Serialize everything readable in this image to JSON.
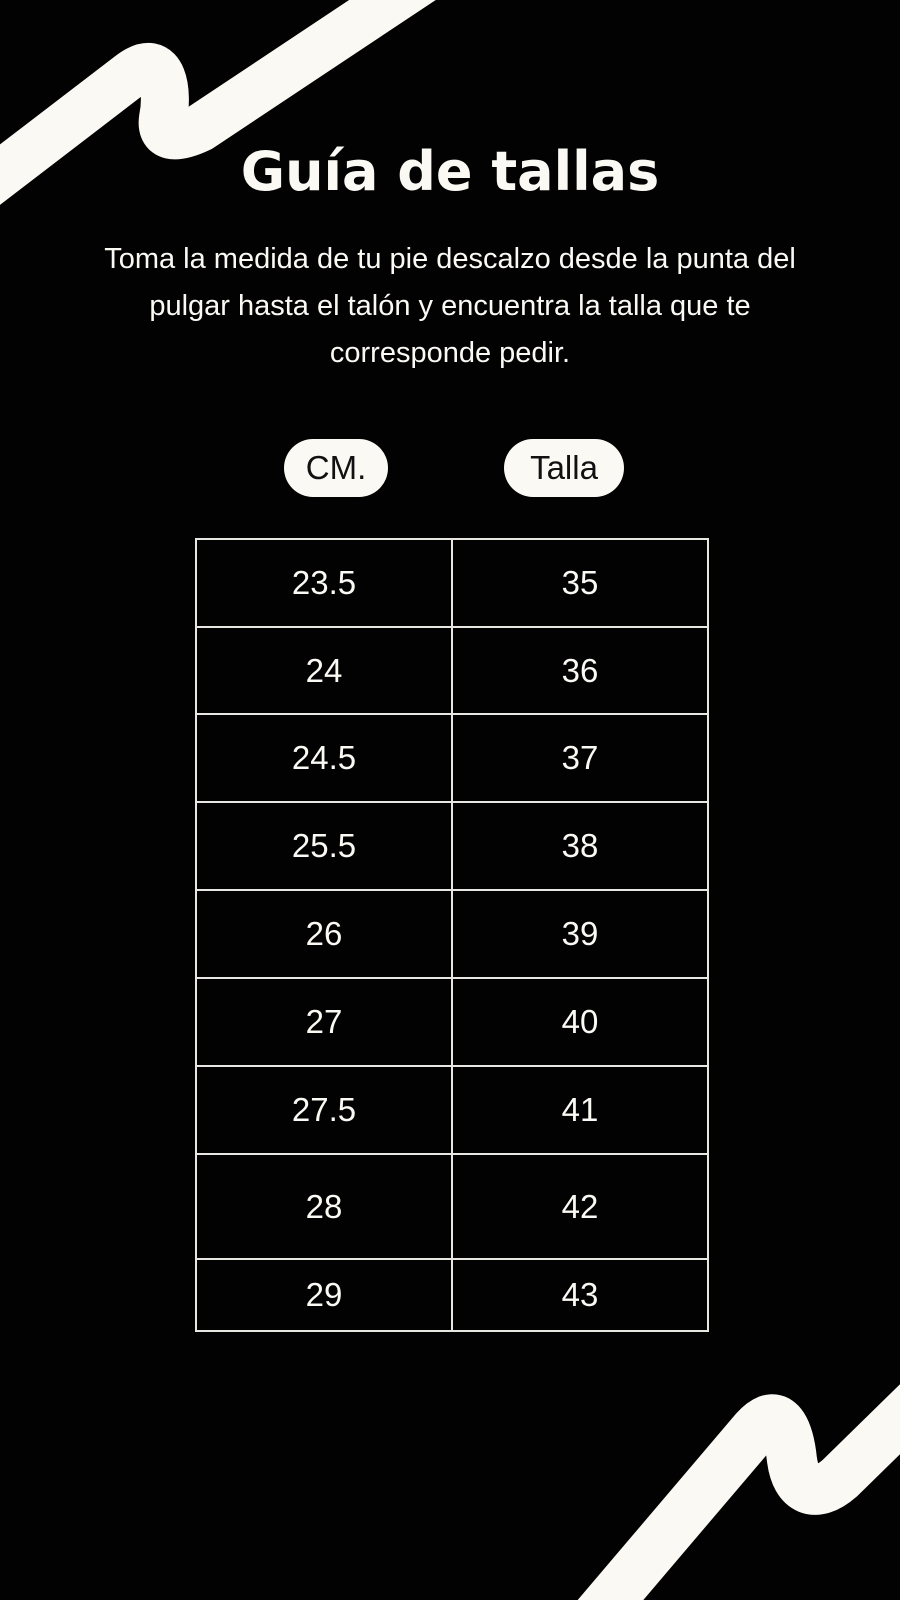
{
  "title": "Guía de tallas",
  "description": "Toma la medida de tu pie descalzo desde la punta del pulgar hasta el talón y encuentra la talla que te corresponde pedir.",
  "headers": {
    "cm": "CM.",
    "size": "Talla"
  },
  "rows": [
    {
      "cm": "23.5",
      "size": "35"
    },
    {
      "cm": "24",
      "size": "36"
    },
    {
      "cm": "24.5",
      "size": "37"
    },
    {
      "cm": "25.5",
      "size": "38"
    },
    {
      "cm": "26",
      "size": "39"
    },
    {
      "cm": "27",
      "size": "40"
    },
    {
      "cm": "27.5",
      "size": "41"
    },
    {
      "cm": "28",
      "size": "42"
    },
    {
      "cm": "29",
      "size": "43"
    }
  ],
  "colors": {
    "background": "#020202",
    "foreground": "#fbf9f4"
  }
}
